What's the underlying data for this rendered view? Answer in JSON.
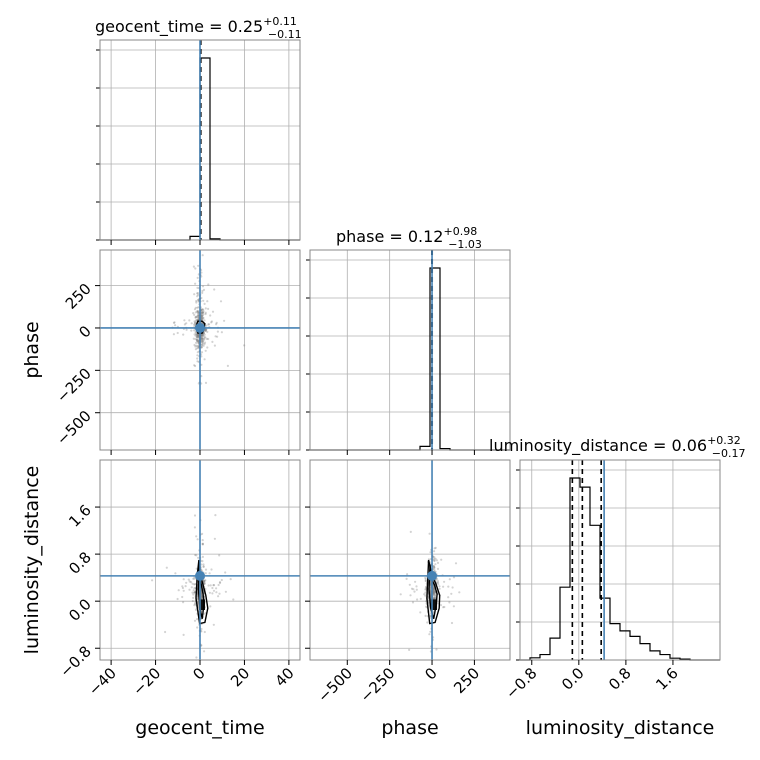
{
  "chart_data": {
    "type": "corner",
    "colors": {
      "truth": "#4682b4",
      "hist": "#000000",
      "grid": "#b0b0b0",
      "samples": "#808080"
    },
    "parameters": [
      "geocent_time",
      "phase",
      "luminosity_distance"
    ],
    "axis_labels": {
      "x": [
        "geocent_time",
        "phase",
        "luminosity_distance"
      ],
      "y": [
        "phase",
        "luminosity_distance"
      ]
    },
    "truths": {
      "geocent_time": 0.0,
      "phase": 0.0,
      "luminosity_distance": 0.43
    },
    "ranges": {
      "geocent_time": [
        -45,
        45
      ],
      "phase": [
        -720,
        460
      ],
      "luminosity_distance": [
        -1.0,
        2.4
      ]
    },
    "ticks": {
      "geocent_time": [
        "-40",
        "-20",
        "0",
        "20",
        "40"
      ],
      "phase": [
        "-500",
        "-250",
        "0",
        "250"
      ],
      "luminosity_distance": [
        "-0.8",
        "0.0",
        "0.8",
        "1.6"
      ]
    },
    "titles": [
      {
        "param": "geocent_time",
        "prefix": "geocent_time = 0.25",
        "plus": "+0.11",
        "minus": "−0.11"
      },
      {
        "param": "phase",
        "prefix": "phase = 0.12",
        "plus": "+0.98",
        "minus": "−1.03"
      },
      {
        "param": "luminosity_distance",
        "prefix": "luminosity_distance = 0.06",
        "plus": "+0.32",
        "minus": "−0.17"
      }
    ],
    "quantile_lines": {
      "geocent_time": [
        0.14,
        0.25,
        0.36
      ],
      "phase": [
        -0.91,
        0.12,
        1.1
      ],
      "luminosity_distance": [
        -0.11,
        0.06,
        0.38
      ]
    },
    "histograms": {
      "geocent_time": {
        "edges": [
          -45,
          -40.5,
          -36,
          -31.5,
          -27,
          -22.5,
          -18,
          -13.5,
          -9,
          -4.5,
          0,
          4.5,
          9,
          13.5,
          18,
          22.5,
          27,
          31.5,
          36,
          40.5,
          45
        ],
        "counts": [
          0,
          0,
          0,
          0,
          0,
          0,
          0,
          0,
          0,
          0.02,
          1.0,
          0.006,
          0,
          0,
          0,
          0,
          0,
          0,
          0,
          0
        ]
      },
      "phase": {
        "edges": [
          -720,
          -661,
          -602,
          -543,
          -484,
          -425,
          -366,
          -307,
          -248,
          -189,
          -130,
          -71,
          -12,
          47,
          106,
          165,
          224,
          283,
          342,
          401,
          460
        ],
        "counts": [
          0,
          0,
          0,
          0,
          0,
          0,
          0,
          0,
          0,
          0,
          0,
          0.02,
          1.0,
          0.008,
          0,
          0,
          0,
          0,
          0,
          0
        ]
      },
      "luminosity_distance": {
        "edges": [
          -1.0,
          -0.83,
          -0.66,
          -0.49,
          -0.32,
          -0.15,
          0.02,
          0.19,
          0.36,
          0.53,
          0.7,
          0.87,
          1.04,
          1.21,
          1.38,
          1.55,
          1.72,
          1.89,
          2.06,
          2.23,
          2.4
        ],
        "counts": [
          0,
          0.012,
          0.03,
          0.12,
          0.4,
          1.0,
          0.95,
          0.74,
          0.34,
          0.2,
          0.16,
          0.13,
          0.09,
          0.05,
          0.03,
          0.01,
          0.005,
          0,
          0,
          0
        ]
      }
    },
    "contours": {
      "geocent_time-phase": [
        {
          "x": [
            -1.0,
            1.0,
            1.8,
            2.2,
            1.0,
            -1.0,
            -1.8,
            -1.0
          ],
          "y": [
            -30,
            -30,
            -5,
            25,
            40,
            40,
            10,
            -30
          ]
        }
      ],
      "geocent_time-luminosity_distance": [
        {
          "x": [
            -0.3,
            -0.1,
            0.6,
            1.4,
            1.8,
            1.0,
            0.0,
            -0.7,
            -0.3
          ],
          "y": [
            0.62,
            0.35,
            0.28,
            0.12,
            -0.05,
            -0.3,
            -0.12,
            0.2,
            0.62
          ]
        },
        {
          "x": [
            -0.5,
            0.0,
            1.2,
            2.6,
            3.5,
            2.2,
            -0.2,
            -1.8,
            -1.2,
            -0.5
          ],
          "y": [
            0.7,
            0.45,
            0.3,
            0.1,
            -0.12,
            -0.36,
            -0.38,
            0.05,
            0.45,
            0.7
          ]
        }
      ],
      "phase-luminosity_distance": [
        {
          "x": [
            -12,
            0,
            14,
            30,
            25,
            10,
            -8,
            -18,
            -12
          ],
          "y": [
            0.62,
            0.35,
            0.28,
            0.12,
            -0.05,
            -0.3,
            -0.12,
            0.2,
            0.62
          ]
        },
        {
          "x": [
            -20,
            -2,
            22,
            45,
            42,
            18,
            -14,
            -30,
            -20
          ],
          "y": [
            0.7,
            0.45,
            0.3,
            0.1,
            -0.12,
            -0.36,
            -0.38,
            0.05,
            0.7
          ]
        }
      ]
    }
  }
}
